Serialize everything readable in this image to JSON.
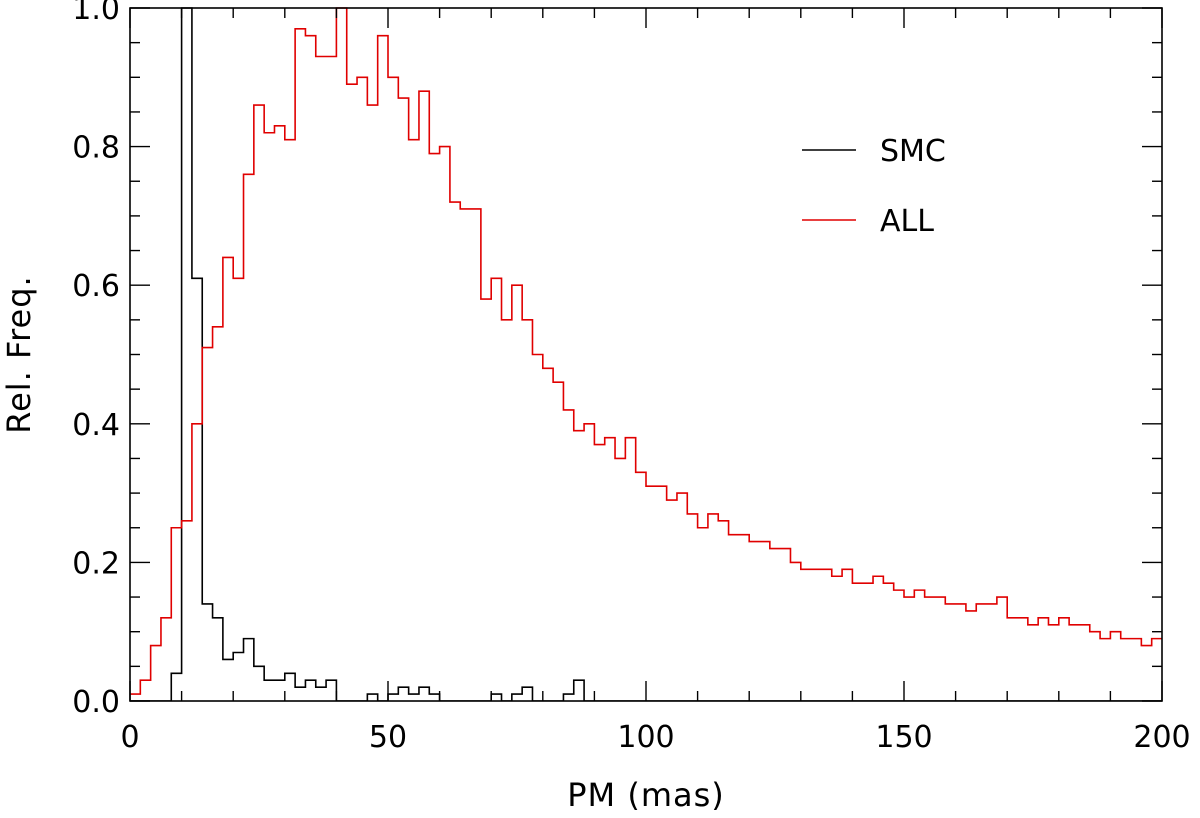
{
  "chart_data": {
    "type": "line",
    "xlabel": "PM (mas)",
    "ylabel": "Rel. Freq.",
    "xlim": [
      0,
      200
    ],
    "ylim": [
      0,
      1.0
    ],
    "x_ticks": [
      {
        "value": 0,
        "label": "0"
      },
      {
        "value": 50,
        "label": "50"
      },
      {
        "value": 100,
        "label": "100"
      },
      {
        "value": 150,
        "label": "150"
      },
      {
        "value": 200,
        "label": "200"
      }
    ],
    "y_ticks": [
      {
        "value": 0.0,
        "label": "0.0"
      },
      {
        "value": 0.2,
        "label": "0.2"
      },
      {
        "value": 0.4,
        "label": "0.4"
      },
      {
        "value": 0.6,
        "label": "0.6"
      },
      {
        "value": 0.8,
        "label": "0.8"
      },
      {
        "value": 1.0,
        "label": "1.0"
      }
    ],
    "grid": false,
    "legend_position": "upper-right",
    "bin_width": 2,
    "bin_start": 0,
    "series": [
      {
        "name": "SMC",
        "color": "#000000",
        "style": "histogram-step",
        "values": [
          0,
          0,
          0,
          0,
          0.04,
          1.0,
          0.61,
          0.14,
          0.12,
          0.06,
          0.07,
          0.09,
          0.05,
          0.03,
          0.03,
          0.04,
          0.02,
          0.03,
          0.02,
          0.03,
          0.0,
          0.0,
          0.0,
          0.01,
          0.0,
          0.01,
          0.02,
          0.01,
          0.02,
          0.01,
          0.0,
          0.0,
          0.0,
          0.0,
          0.0,
          0.01,
          0.0,
          0.01,
          0.02,
          0.0,
          0.0,
          0.0,
          0.01,
          0.03,
          0.0,
          0.0,
          0.0,
          0.0,
          0.0,
          0.0,
          0.0,
          0.0,
          0.0,
          0.0,
          0.0,
          0.0,
          0.0,
          0.0,
          0.0,
          0.0,
          0.0,
          0.0,
          0.0,
          0.0,
          0.0,
          0.0,
          0.0,
          0.0,
          0.0,
          0.0,
          0.0,
          0.0,
          0.0,
          0.0,
          0.0,
          0.0,
          0.0,
          0.0,
          0.0,
          0.0,
          0.0,
          0.0,
          0.0,
          0.0,
          0.0,
          0.0,
          0.0,
          0.0,
          0.0,
          0.0,
          0.0,
          0.0,
          0.0,
          0.0,
          0.0,
          0.0,
          0.0,
          0.0,
          0.0,
          0.0
        ]
      },
      {
        "name": "ALL",
        "color": "#e00000",
        "style": "histogram-step",
        "values": [
          0.01,
          0.03,
          0.08,
          0.12,
          0.25,
          0.26,
          0.4,
          0.51,
          0.54,
          0.64,
          0.61,
          0.76,
          0.86,
          0.82,
          0.83,
          0.81,
          0.97,
          0.96,
          0.93,
          0.93,
          1.0,
          0.89,
          0.9,
          0.86,
          0.96,
          0.9,
          0.87,
          0.81,
          0.88,
          0.79,
          0.8,
          0.72,
          0.71,
          0.71,
          0.58,
          0.61,
          0.55,
          0.6,
          0.55,
          0.5,
          0.48,
          0.46,
          0.42,
          0.39,
          0.4,
          0.37,
          0.38,
          0.35,
          0.38,
          0.33,
          0.31,
          0.31,
          0.29,
          0.3,
          0.27,
          0.25,
          0.27,
          0.26,
          0.24,
          0.24,
          0.23,
          0.23,
          0.22,
          0.22,
          0.2,
          0.19,
          0.19,
          0.19,
          0.18,
          0.19,
          0.17,
          0.17,
          0.18,
          0.17,
          0.16,
          0.15,
          0.16,
          0.15,
          0.15,
          0.14,
          0.14,
          0.13,
          0.14,
          0.14,
          0.15,
          0.12,
          0.12,
          0.11,
          0.12,
          0.11,
          0.12,
          0.11,
          0.11,
          0.1,
          0.09,
          0.1,
          0.09,
          0.09,
          0.08,
          0.09
        ]
      }
    ]
  }
}
